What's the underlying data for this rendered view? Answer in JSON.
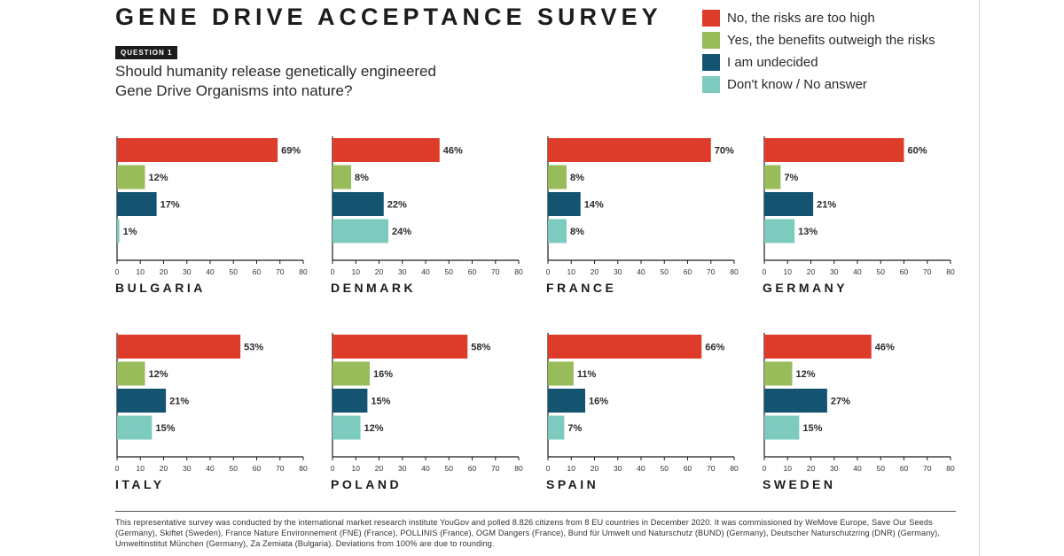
{
  "title": "GENE DRIVE ACCEPTANCE SURVEY",
  "question_badge": "QUESTION 1",
  "question_line1": "Should humanity release genetically engineered",
  "question_line2": "Gene Drive Organisms into nature?",
  "legend": [
    {
      "label": "No, the risks are too high",
      "color": "#de3c2a"
    },
    {
      "label": "Yes, the benefits outweigh the risks",
      "color": "#98bc5a"
    },
    {
      "label": "I am undecided",
      "color": "#155470"
    },
    {
      "label": "Don't know / No answer",
      "color": "#7ccbbe"
    }
  ],
  "footnote": "This representative survey was conducted by the international market research institute YouGov and polled 8.826 citizens from 8 EU countries in December 2020. It was commissioned by WeMove Europe, Save Our Seeds (Germany), Skiftet (Sweden), France Nature Environnement (FNE) (France), POLLINIS (France), OGM Dangers (France), Bund für Umwelt und Naturschutz (BUND) (Germany), Deutscher Naturschutzring (DNR) (Germany), Umweltinstitut München (Germany), Za Zemiata (Bulgaria). Deviations from 100% are due to rounding.",
  "chart_data": [
    {
      "type": "bar",
      "orientation": "horizontal",
      "title": "BULGARIA",
      "categories": [
        "No, the risks are too high",
        "Yes, the benefits outweigh the risks",
        "I am undecided",
        "Don't know / No answer"
      ],
      "values": [
        69,
        12,
        17,
        1
      ],
      "data_labels": [
        "69%",
        "12%",
        "17%",
        "1%"
      ],
      "xlim": [
        0,
        80
      ],
      "xticks": [
        "0",
        "10",
        "20",
        "30",
        "40",
        "50",
        "60",
        "70",
        "80"
      ]
    },
    {
      "type": "bar",
      "orientation": "horizontal",
      "title": "DENMARK",
      "categories": [
        "No, the risks are too high",
        "Yes, the benefits outweigh the risks",
        "I am undecided",
        "Don't know / No answer"
      ],
      "values": [
        46,
        8,
        22,
        24
      ],
      "data_labels": [
        "46%",
        "8%",
        "22%",
        "24%"
      ],
      "xlim": [
        0,
        80
      ],
      "xticks": [
        "0",
        "10",
        "20",
        "30",
        "40",
        "50",
        "60",
        "70",
        "80"
      ]
    },
    {
      "type": "bar",
      "orientation": "horizontal",
      "title": "FRANCE",
      "categories": [
        "No, the risks are too high",
        "Yes, the benefits outweigh the risks",
        "I am undecided",
        "Don't know / No answer"
      ],
      "values": [
        70,
        8,
        14,
        8
      ],
      "data_labels": [
        "70%",
        "8%",
        "14%",
        "8%"
      ],
      "xlim": [
        0,
        80
      ],
      "xticks": [
        "0",
        "10",
        "20",
        "30",
        "40",
        "50",
        "60",
        "70",
        "80"
      ]
    },
    {
      "type": "bar",
      "orientation": "horizontal",
      "title": "GERMANY",
      "categories": [
        "No, the risks are too high",
        "Yes, the benefits outweigh the risks",
        "I am undecided",
        "Don't know / No answer"
      ],
      "values": [
        60,
        7,
        21,
        13
      ],
      "data_labels": [
        "60%",
        "7%",
        "21%",
        "13%"
      ],
      "xlim": [
        0,
        80
      ],
      "xticks": [
        "0",
        "10",
        "20",
        "30",
        "40",
        "50",
        "60",
        "70",
        "80"
      ]
    },
    {
      "type": "bar",
      "orientation": "horizontal",
      "title": "ITALY",
      "categories": [
        "No, the risks are too high",
        "Yes, the benefits outweigh the risks",
        "I am undecided",
        "Don't know / No answer"
      ],
      "values": [
        53,
        12,
        21,
        15
      ],
      "data_labels": [
        "53%",
        "12%",
        "21%",
        "15%"
      ],
      "xlim": [
        0,
        80
      ],
      "xticks": [
        "0",
        "10",
        "20",
        "30",
        "40",
        "50",
        "60",
        "70",
        "80"
      ]
    },
    {
      "type": "bar",
      "orientation": "horizontal",
      "title": "POLAND",
      "categories": [
        "No, the risks are too high",
        "Yes, the benefits outweigh the risks",
        "I am undecided",
        "Don't know / No answer"
      ],
      "values": [
        58,
        16,
        15,
        12
      ],
      "data_labels": [
        "58%",
        "16%",
        "15%",
        "12%"
      ],
      "xlim": [
        0,
        80
      ],
      "xticks": [
        "0",
        "10",
        "20",
        "30",
        "40",
        "50",
        "60",
        "70",
        "80"
      ]
    },
    {
      "type": "bar",
      "orientation": "horizontal",
      "title": "SPAIN",
      "categories": [
        "No, the risks are too high",
        "Yes, the benefits outweigh the risks",
        "I am undecided",
        "Don't know / No answer"
      ],
      "values": [
        66,
        11,
        16,
        7
      ],
      "data_labels": [
        "66%",
        "11%",
        "16%",
        "7%"
      ],
      "xlim": [
        0,
        80
      ],
      "xticks": [
        "0",
        "10",
        "20",
        "30",
        "40",
        "50",
        "60",
        "70",
        "80"
      ]
    },
    {
      "type": "bar",
      "orientation": "horizontal",
      "title": "SWEDEN",
      "categories": [
        "No, the risks are too high",
        "Yes, the benefits outweigh the risks",
        "I am undecided",
        "Don't know / No answer"
      ],
      "values": [
        46,
        12,
        27,
        15
      ],
      "data_labels": [
        "46%",
        "12%",
        "27%",
        "15%"
      ],
      "xlim": [
        0,
        80
      ],
      "xticks": [
        "0",
        "10",
        "20",
        "30",
        "40",
        "50",
        "60",
        "70",
        "80"
      ]
    }
  ]
}
